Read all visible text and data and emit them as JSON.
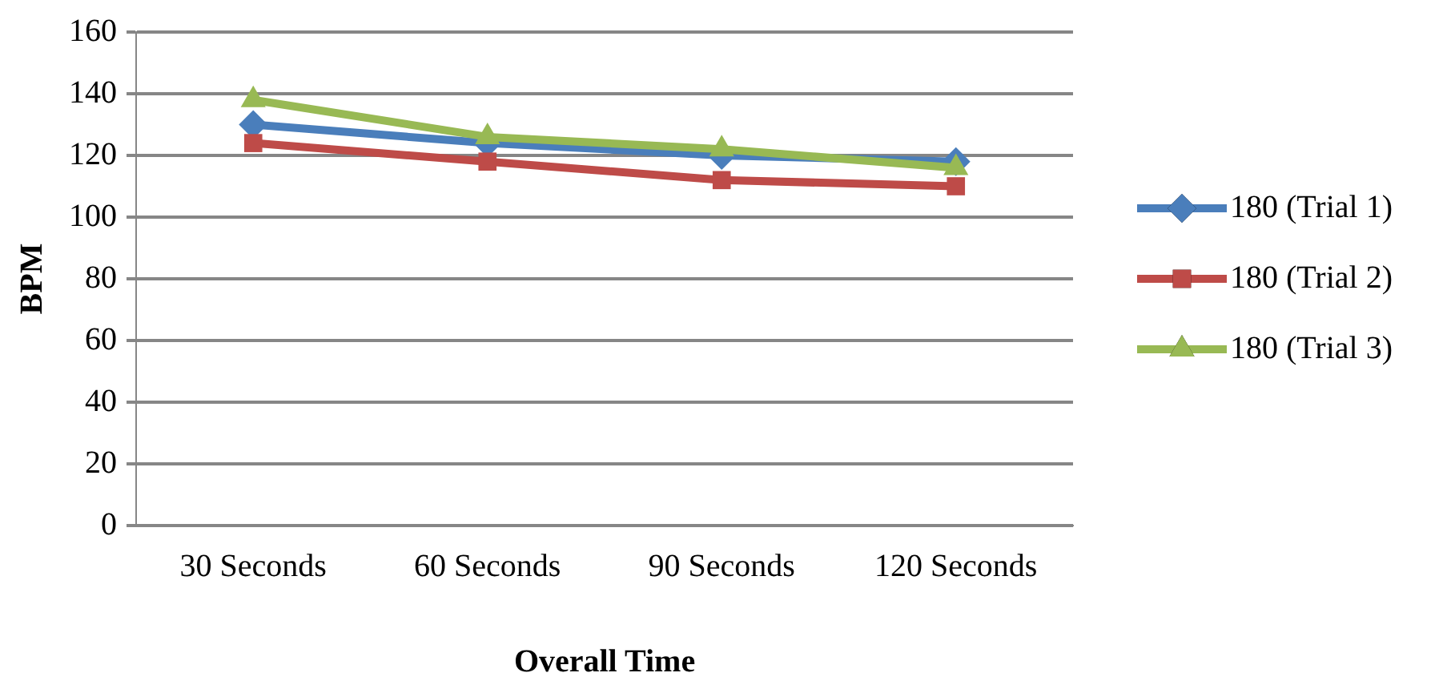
{
  "chart_data": {
    "type": "line",
    "xlabel": "Overall Time",
    "ylabel": "BPM",
    "categories": [
      "30 Seconds",
      "60 Seconds",
      "90 Seconds",
      "120 Seconds"
    ],
    "series": [
      {
        "name": "180 (Trial 1)",
        "color": "#4a7ebb",
        "values": [
          130,
          124,
          120,
          118
        ],
        "marker": "diamond"
      },
      {
        "name": "180 (Trial 2)",
        "color": "#be4b48",
        "values": [
          124,
          118,
          112,
          110
        ],
        "marker": "square"
      },
      {
        "name": "180 (Trial 3)",
        "color": "#98b954",
        "values": [
          138,
          126,
          122,
          116
        ],
        "marker": "triangle"
      }
    ],
    "ylim": [
      0,
      160
    ],
    "yticks": [
      0,
      20,
      40,
      60,
      80,
      100,
      120,
      140,
      160
    ],
    "grid": "y",
    "legend": "right"
  }
}
